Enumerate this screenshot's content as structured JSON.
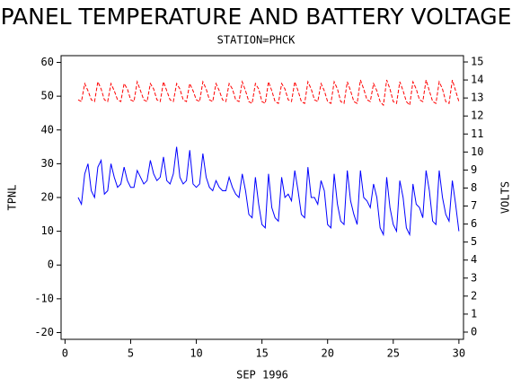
{
  "chart_data": {
    "type": "line",
    "title": "PANEL TEMPERATURE AND BATTERY VOLTAGE",
    "subtitle": "STATION=PHCK",
    "xlabel": "SEP 1996",
    "ylabel": "TPNL",
    "y2label": "VOLTS",
    "x": [
      1,
      1.25,
      1.5,
      1.75,
      2,
      2.25,
      2.5,
      2.75,
      3,
      3.25,
      3.5,
      3.75,
      4,
      4.25,
      4.5,
      4.75,
      5,
      5.25,
      5.5,
      5.75,
      6,
      6.25,
      6.5,
      6.75,
      7,
      7.25,
      7.5,
      7.75,
      8,
      8.25,
      8.5,
      8.75,
      9,
      9.25,
      9.5,
      9.75,
      10,
      10.25,
      10.5,
      10.75,
      11,
      11.25,
      11.5,
      11.75,
      12,
      12.25,
      12.5,
      12.75,
      13,
      13.25,
      13.5,
      13.75,
      14,
      14.25,
      14.5,
      14.75,
      15,
      15.25,
      15.5,
      15.75,
      16,
      16.25,
      16.5,
      16.75,
      17,
      17.25,
      17.5,
      17.75,
      18,
      18.25,
      18.5,
      18.75,
      19,
      19.25,
      19.5,
      19.75,
      20,
      20.25,
      20.5,
      20.75,
      21,
      21.25,
      21.5,
      21.75,
      22,
      22.25,
      22.5,
      22.75,
      23,
      23.25,
      23.5,
      23.75,
      24,
      24.25,
      24.5,
      24.75,
      25,
      25.25,
      25.5,
      25.75,
      26,
      26.25,
      26.5,
      26.75,
      27,
      27.25,
      27.5,
      27.75,
      28,
      28.25,
      28.5,
      28.75,
      29,
      29.25,
      29.5,
      29.75,
      30
    ],
    "series": [
      {
        "name": "TPNL",
        "color": "#0000ff",
        "axis": "y",
        "values": [
          20,
          18,
          27,
          30,
          22,
          20,
          29,
          31,
          21,
          22,
          30,
          26,
          23,
          24,
          29,
          25,
          23,
          23,
          28,
          26,
          24,
          25,
          31,
          27,
          25,
          26,
          32,
          25,
          24,
          27,
          35,
          26,
          24,
          25,
          34,
          24,
          23,
          24,
          33,
          26,
          23,
          22,
          25,
          23,
          22,
          22,
          26,
          23,
          21,
          20,
          27,
          22,
          15,
          14,
          26,
          18,
          12,
          11,
          27,
          17,
          14,
          13,
          26,
          20,
          21,
          19,
          28,
          22,
          15,
          14,
          29,
          20,
          20,
          18,
          25,
          22,
          12,
          11,
          27,
          18,
          13,
          12,
          28,
          19,
          15,
          12,
          28,
          20,
          19,
          17,
          24,
          20,
          11,
          9,
          26,
          17,
          12,
          10,
          25,
          20,
          11,
          9,
          24,
          18,
          17,
          14,
          28,
          22,
          13,
          12,
          28,
          20,
          15,
          13,
          25,
          18,
          10
        ]
      },
      {
        "name": "VOLTS",
        "color": "#ff0000",
        "axis": "y2",
        "dashed": true,
        "values": [
          12.9,
          12.8,
          13.8,
          13.4,
          12.9,
          12.8,
          13.9,
          13.5,
          12.9,
          12.8,
          13.8,
          13.4,
          12.9,
          12.8,
          13.8,
          13.5,
          12.9,
          12.8,
          13.9,
          13.4,
          12.9,
          12.8,
          13.8,
          13.5,
          12.9,
          12.8,
          13.9,
          13.4,
          12.9,
          12.8,
          13.8,
          13.5,
          12.9,
          12.8,
          13.8,
          13.4,
          12.9,
          12.8,
          13.9,
          13.5,
          12.9,
          12.8,
          13.8,
          13.4,
          12.9,
          12.8,
          13.8,
          13.5,
          12.9,
          12.8,
          13.9,
          13.4,
          12.8,
          12.7,
          13.8,
          13.5,
          12.8,
          12.7,
          13.9,
          13.4,
          12.8,
          12.7,
          13.8,
          13.5,
          12.9,
          12.8,
          13.9,
          13.4,
          12.8,
          12.7,
          13.9,
          13.5,
          12.9,
          12.8,
          13.8,
          13.4,
          12.8,
          12.7,
          13.9,
          13.5,
          12.8,
          12.7,
          13.9,
          13.4,
          12.8,
          12.7,
          14.0,
          13.5,
          12.9,
          12.8,
          13.8,
          13.4,
          12.8,
          12.6,
          14.0,
          13.5,
          12.8,
          12.7,
          13.9,
          13.4,
          12.8,
          12.6,
          13.9,
          13.5,
          12.9,
          12.8,
          14.0,
          13.4,
          12.8,
          12.7,
          13.9,
          13.5,
          12.8,
          12.7,
          14.0,
          13.4,
          12.8
        ]
      }
    ],
    "xlim": [
      -0.3,
      30.35
    ],
    "xticks": [
      0,
      5,
      10,
      15,
      20,
      25,
      30
    ],
    "ylim": [
      -22,
      62
    ],
    "yticks": [
      -20,
      -10,
      0,
      10,
      20,
      30,
      40,
      50,
      60
    ],
    "y2lim": [
      -0.4,
      15.35
    ],
    "y2ticks": [
      0,
      1,
      2,
      3,
      4,
      5,
      6,
      7,
      8,
      9,
      10,
      11,
      12,
      13,
      14,
      15
    ]
  }
}
